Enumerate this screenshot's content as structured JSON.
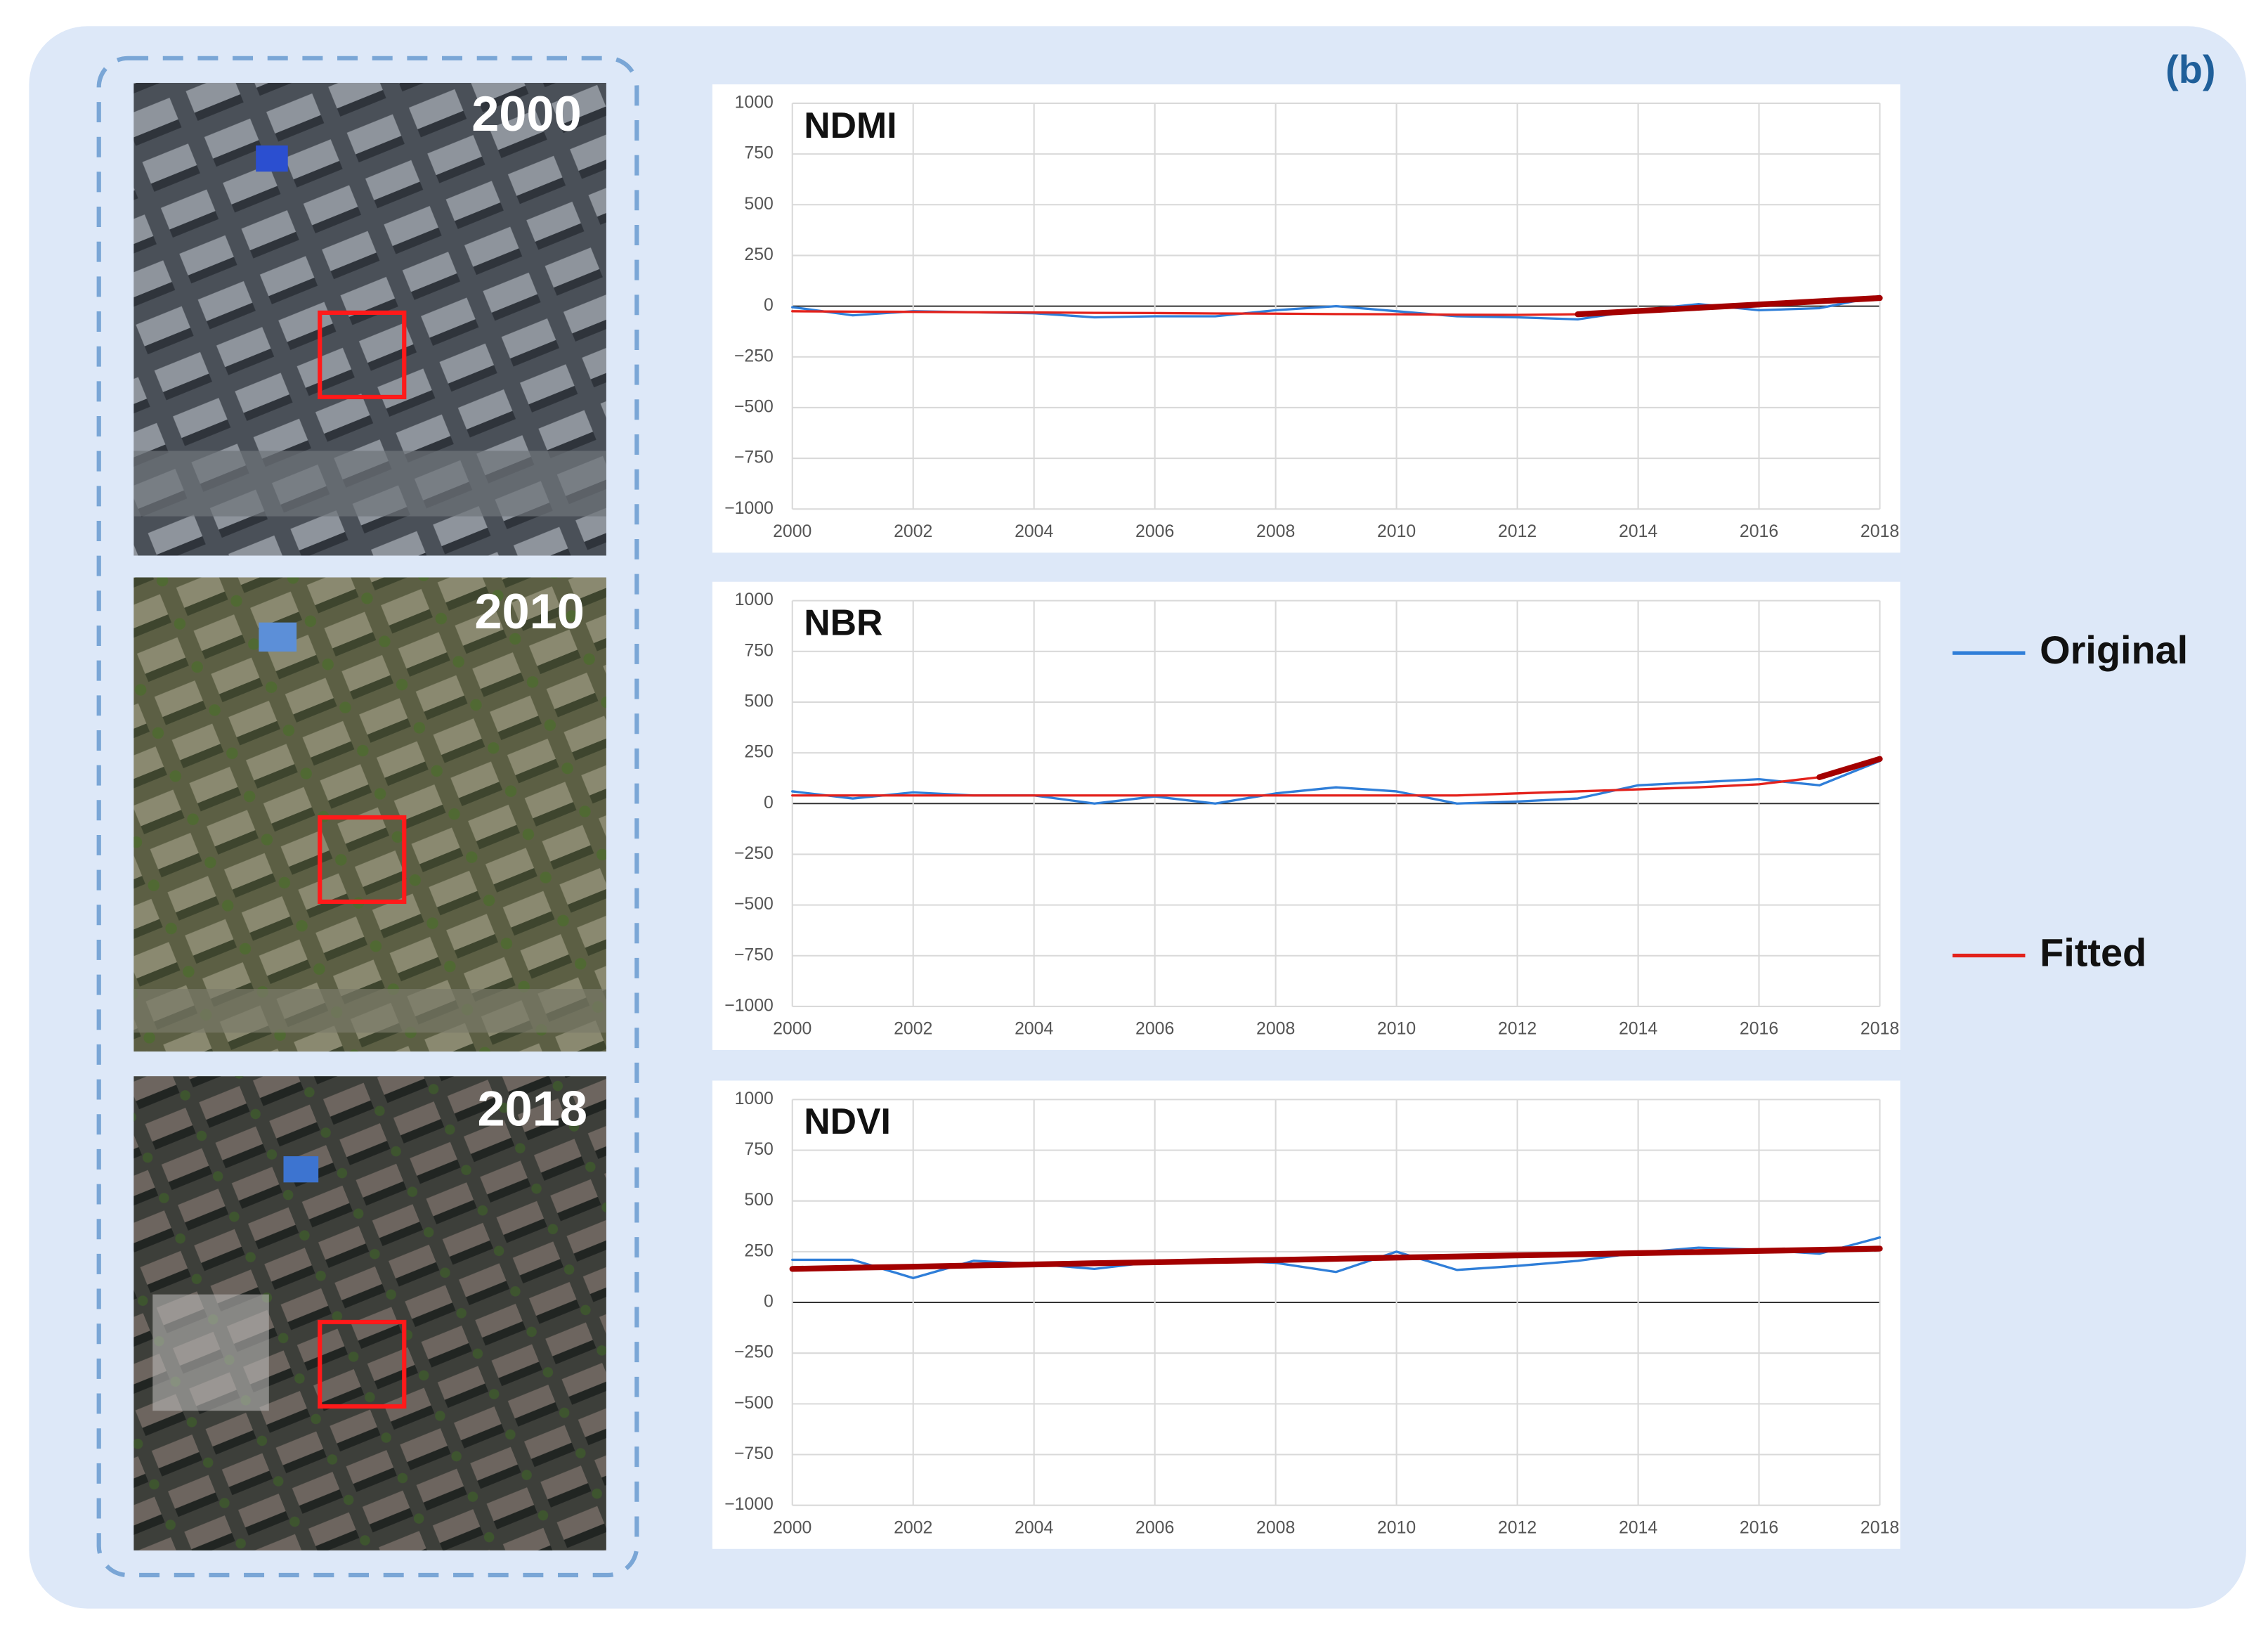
{
  "panel_label": "(b)",
  "images": [
    {
      "label": "2000"
    },
    {
      "label": "2010"
    },
    {
      "label": "2018"
    }
  ],
  "chart_data": [
    {
      "type": "line",
      "title": "NDMI",
      "x": [
        2000,
        2001,
        2002,
        2003,
        2004,
        2005,
        2006,
        2007,
        2008,
        2009,
        2010,
        2011,
        2012,
        2013,
        2014,
        2015,
        2016,
        2017,
        2018
      ],
      "xlim": [
        2000,
        2018
      ],
      "xticks": [
        2000,
        2002,
        2004,
        2006,
        2008,
        2010,
        2012,
        2014,
        2016,
        2018
      ],
      "ylim": [
        -1000,
        1000
      ],
      "yticks": [
        {
          "value": -1000,
          "label": "−1000"
        },
        {
          "value": -750,
          "label": "−750"
        },
        {
          "value": -500,
          "label": "−500"
        },
        {
          "value": -250,
          "label": "−250"
        },
        0,
        250,
        500,
        750,
        1000
      ],
      "grid": true,
      "series": [
        {
          "name": "Original",
          "color": "#2f7ed8",
          "values": [
            -5,
            -45,
            -25,
            -30,
            -35,
            -55,
            -50,
            -50,
            -20,
            0,
            -25,
            -50,
            -55,
            -65,
            -20,
            10,
            -20,
            -10,
            50
          ]
        },
        {
          "name": "Fitted",
          "color": "#e3221c",
          "emphasis_color": "#a30000",
          "emphasis_start": 13,
          "values": [
            -25,
            -27,
            -28,
            -30,
            -31,
            -33,
            -34,
            -36,
            -37,
            -39,
            -40,
            -42,
            -43,
            -40,
            -24,
            -8,
            8,
            24,
            40
          ]
        }
      ]
    },
    {
      "type": "line",
      "title": "NBR",
      "x": [
        2000,
        2001,
        2002,
        2003,
        2004,
        2005,
        2006,
        2007,
        2008,
        2009,
        2010,
        2011,
        2012,
        2013,
        2014,
        2015,
        2016,
        2017,
        2018
      ],
      "xlim": [
        2000,
        2018
      ],
      "xticks": [
        2000,
        2002,
        2004,
        2006,
        2008,
        2010,
        2012,
        2014,
        2016,
        2018
      ],
      "ylim": [
        -1000,
        1000
      ],
      "yticks": [
        {
          "value": -1000,
          "label": "−1000"
        },
        {
          "value": -750,
          "label": "−750"
        },
        {
          "value": -500,
          "label": "−500"
        },
        {
          "value": -250,
          "label": "−250"
        },
        0,
        250,
        500,
        750,
        1000
      ],
      "grid": true,
      "series": [
        {
          "name": "Original",
          "color": "#2f7ed8",
          "values": [
            60,
            25,
            55,
            40,
            40,
            0,
            35,
            0,
            50,
            80,
            60,
            0,
            10,
            25,
            90,
            105,
            120,
            90,
            210
          ]
        },
        {
          "name": "Fitted",
          "color": "#e3221c",
          "emphasis_color": "#a30000",
          "emphasis_start": 17,
          "values": [
            40,
            40,
            40,
            40,
            40,
            40,
            40,
            40,
            40,
            40,
            40,
            40,
            50,
            60,
            70,
            80,
            95,
            130,
            220
          ]
        }
      ]
    },
    {
      "type": "line",
      "title": "NDVI",
      "x": [
        2000,
        2001,
        2002,
        2003,
        2004,
        2005,
        2006,
        2007,
        2008,
        2009,
        2010,
        2011,
        2012,
        2013,
        2014,
        2015,
        2016,
        2017,
        2018
      ],
      "xlim": [
        2000,
        2018
      ],
      "xticks": [
        2000,
        2002,
        2004,
        2006,
        2008,
        2010,
        2012,
        2014,
        2016,
        2018
      ],
      "ylim": [
        -1000,
        1000
      ],
      "yticks": [
        {
          "value": -1000,
          "label": "−1000"
        },
        {
          "value": -750,
          "label": "−750"
        },
        {
          "value": -500,
          "label": "−500"
        },
        {
          "value": -250,
          "label": "−250"
        },
        0,
        250,
        500,
        750,
        1000
      ],
      "grid": true,
      "series": [
        {
          "name": "Original",
          "color": "#2f7ed8",
          "values": [
            210,
            210,
            120,
            205,
            190,
            165,
            200,
            210,
            195,
            150,
            250,
            160,
            180,
            205,
            245,
            270,
            260,
            240,
            320
          ]
        },
        {
          "name": "Fitted",
          "color": "#e3221c",
          "emphasis_color": "#a30000",
          "emphasis_start": 0,
          "values": [
            165,
            171,
            176,
            182,
            187,
            193,
            198,
            204,
            209,
            215,
            221,
            226,
            232,
            237,
            243,
            248,
            254,
            259,
            265
          ]
        }
      ]
    }
  ]
}
